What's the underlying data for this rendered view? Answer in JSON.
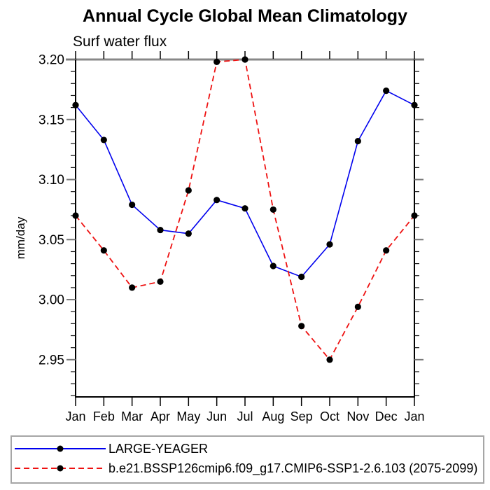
{
  "chart_data": {
    "type": "line",
    "title": "Annual Cycle Global Mean Climatology",
    "subtitle": "Surf water flux",
    "xlabel": "",
    "ylabel": "mm/day",
    "x_categories": [
      "Jan",
      "Feb",
      "Mar",
      "Apr",
      "May",
      "Jun",
      "Jul",
      "Aug",
      "Sep",
      "Oct",
      "Nov",
      "Dec",
      "Jan"
    ],
    "y_tick_labels": [
      "3.20",
      "3.15",
      "3.10",
      "3.05",
      "3.00",
      "2.95"
    ],
    "y_ticks_major": [
      3.2,
      3.15,
      3.1,
      3.05,
      3.0,
      2.95
    ],
    "y_minor_step": 0.01,
    "ylim": [
      2.919,
      3.2
    ],
    "grid": false,
    "legend_position": "bottom",
    "marker": "filled-circle",
    "marker_color": "#000000",
    "axis_color": "#000000",
    "top_frame_color": "#888888",
    "major_tick_color": "#777777",
    "minor_tick_color": "#111111",
    "series": [
      {
        "name": "LARGE-YEAGER",
        "color": "#0000ee",
        "style": "solid",
        "values": [
          3.162,
          3.133,
          3.079,
          3.058,
          3.055,
          3.083,
          3.076,
          3.028,
          3.019,
          3.046,
          3.132,
          3.174,
          3.162
        ]
      },
      {
        "name": "b.e21.BSSP126cmip6.f09_g17.CMIP6-SSP1-2.6.103 (2075-2099)",
        "color": "#ee1111",
        "style": "dashed",
        "values": [
          3.07,
          3.041,
          3.01,
          3.015,
          3.091,
          3.198,
          3.2,
          3.075,
          2.978,
          2.95,
          2.994,
          3.041,
          3.07
        ]
      }
    ]
  }
}
